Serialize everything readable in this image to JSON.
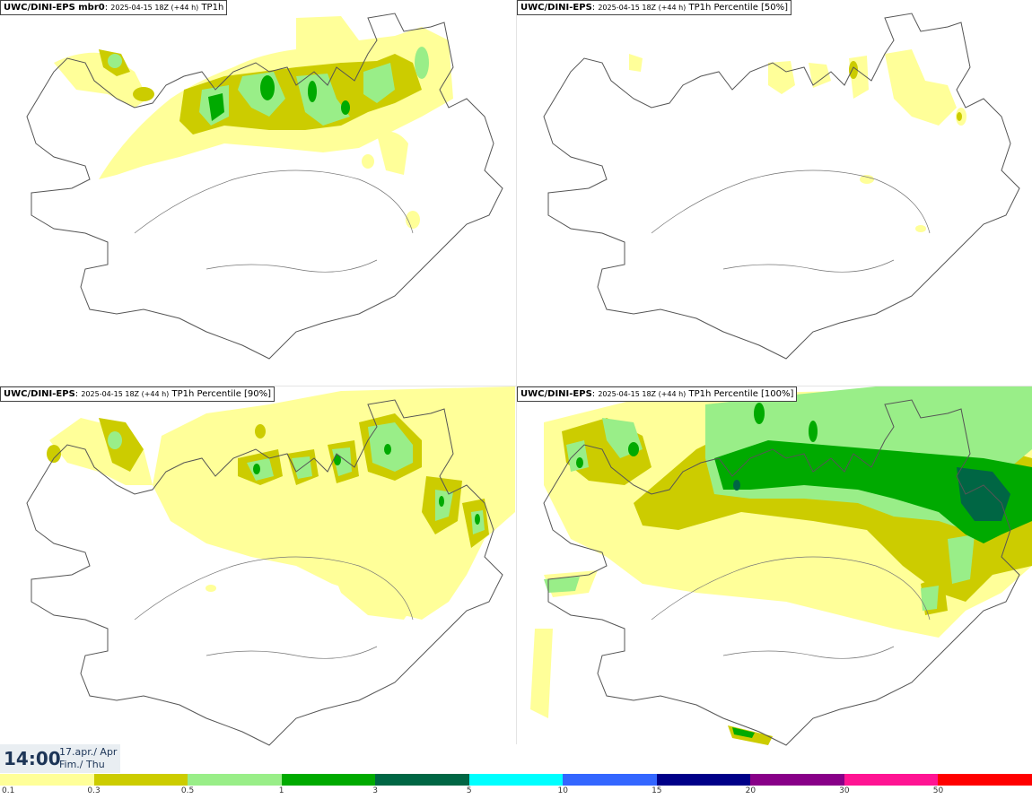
{
  "panels": [
    {
      "model": "UWC/DINI-EPS mbr0",
      "run": "2025-04-15 18Z (+44 h)",
      "field": "TP1h"
    },
    {
      "model": "UWC/DINI-EPS",
      "run": "2025-04-15 18Z (+44 h)",
      "field": "TP1h Percentile [50%]"
    },
    {
      "model": "UWC/DINI-EPS",
      "run": "2025-04-15 18Z (+44 h)",
      "field": "TP1h Percentile [90%]"
    },
    {
      "model": "UWC/DINI-EPS",
      "run": "2025-04-15 18Z (+44 h)",
      "field": "TP1h Percentile [100%]"
    }
  ],
  "valid_time": {
    "time": "14:00",
    "date_line1": "17.apr./ Apr",
    "date_line2": "Fim./ Thu"
  },
  "colorbar": {
    "colors": [
      "#ffff99",
      "#cccc00",
      "#99ee88",
      "#00aa00",
      "#006644",
      "#00ffff",
      "#3366ff",
      "#000088",
      "#880088",
      "#ff1493",
      "#ff0000"
    ],
    "labels": [
      "0.1",
      "0.3",
      "0.5",
      "1",
      "3",
      "5",
      "10",
      "15",
      "20",
      "30",
      "50"
    ]
  },
  "colors": {
    "light_yellow": "#ffff99",
    "olive": "#cccc00",
    "light_green": "#99ee88",
    "green": "#00aa00",
    "dark_green": "#006644"
  }
}
